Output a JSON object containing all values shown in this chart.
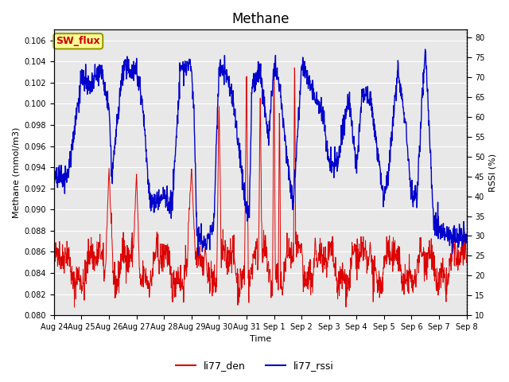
{
  "title": "Methane",
  "xlabel": "Time",
  "ylabel_left": "Methane (mmol/m3)",
  "ylabel_right": "RSSI (%)",
  "ylim_left": [
    0.08,
    0.107
  ],
  "ylim_right": [
    10,
    82
  ],
  "yticks_left": [
    0.08,
    0.082,
    0.084,
    0.086,
    0.088,
    0.09,
    0.092,
    0.094,
    0.096,
    0.098,
    0.1,
    0.102,
    0.104,
    0.106
  ],
  "yticks_right": [
    10,
    15,
    20,
    25,
    30,
    35,
    40,
    45,
    50,
    55,
    60,
    65,
    70,
    75,
    80
  ],
  "xtick_labels": [
    "Aug 24",
    "Aug 25",
    "Aug 26",
    "Aug 27",
    "Aug 28",
    "Aug 29",
    "Aug 30",
    "Aug 31",
    "Sep 1",
    "Sep 2",
    "Sep 3",
    "Sep 4",
    "Sep 5",
    "Sep 6",
    "Sep 7",
    "Sep 8"
  ],
  "annotation_text": "SW_flux",
  "annotation_bg": "#ffff99",
  "annotation_border": "#999900",
  "annotation_text_color": "#cc0000",
  "line_den_color": "#dd0000",
  "line_rssi_color": "#0000cc",
  "legend_labels": [
    "li77_den",
    "li77_rssi"
  ],
  "background_plot": "#e8e8e8",
  "background_fig": "#ffffff",
  "grid_color": "#ffffff",
  "title_fontsize": 12
}
